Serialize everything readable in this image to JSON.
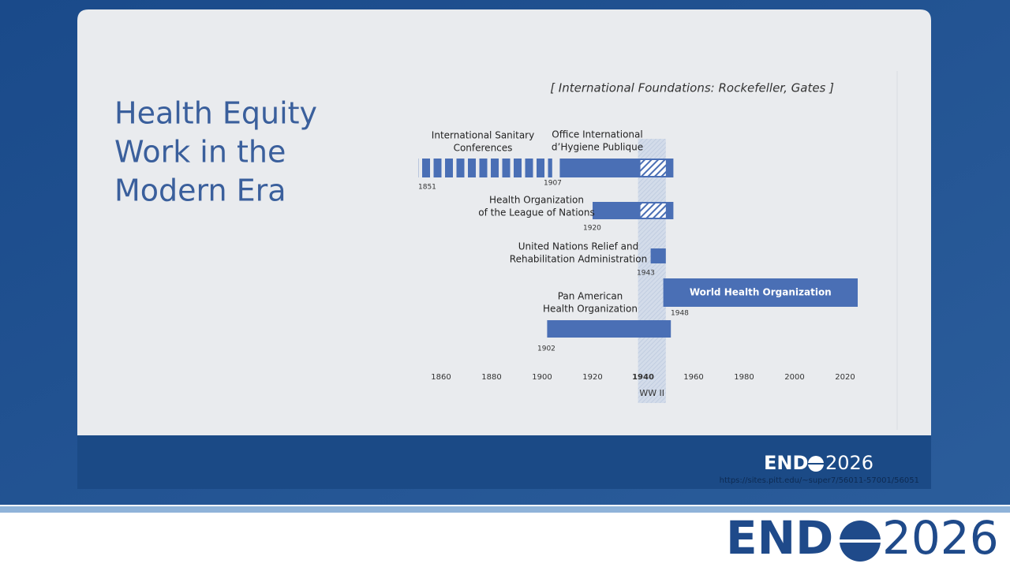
{
  "slide": {
    "title_lines": [
      "Health Equity",
      "Work in the",
      "Modern Era"
    ],
    "note": "[ International Foundations:  Rockefeller, Gates ]",
    "url": "https://sites.pitt.edu/~super7/56011-57001/56051",
    "logo": {
      "left": "END",
      "right": "2026"
    }
  },
  "chart_data": {
    "type": "timeline",
    "xlim": [
      1850,
      2030
    ],
    "xticks": [
      1860,
      1880,
      1900,
      1920,
      1940,
      1960,
      1980,
      2000,
      2020
    ],
    "color": "#4a6fb5",
    "band": {
      "label": "WW II",
      "start": 1938,
      "end": 1949
    },
    "items": [
      {
        "name": [
          "International Sanitary",
          "Conferences"
        ],
        "start": 1851,
        "end": 1904,
        "segmented": true,
        "hatched": false
      },
      {
        "name": [
          "Office International",
          "d’Hygiene Publique"
        ],
        "start": 1907,
        "end": 1952,
        "segmented": false,
        "hatched": true
      },
      {
        "name": [
          "Health Organization",
          "of the League of Nations"
        ],
        "start": 1920,
        "end": 1952,
        "segmented": false,
        "hatched": true
      },
      {
        "name": [
          "United Nations Relief and",
          "Rehabilitation Administration"
        ],
        "start": 1943,
        "end": 1949,
        "segmented": false,
        "hatched": false
      },
      {
        "name": [
          "World Health Organization"
        ],
        "start": 1948,
        "end": 2025,
        "segmented": false,
        "hatched": false
      },
      {
        "name": [
          "Pan American",
          "Health Organization"
        ],
        "start": 1902,
        "end": 1951,
        "segmented": false,
        "hatched": false
      }
    ]
  }
}
